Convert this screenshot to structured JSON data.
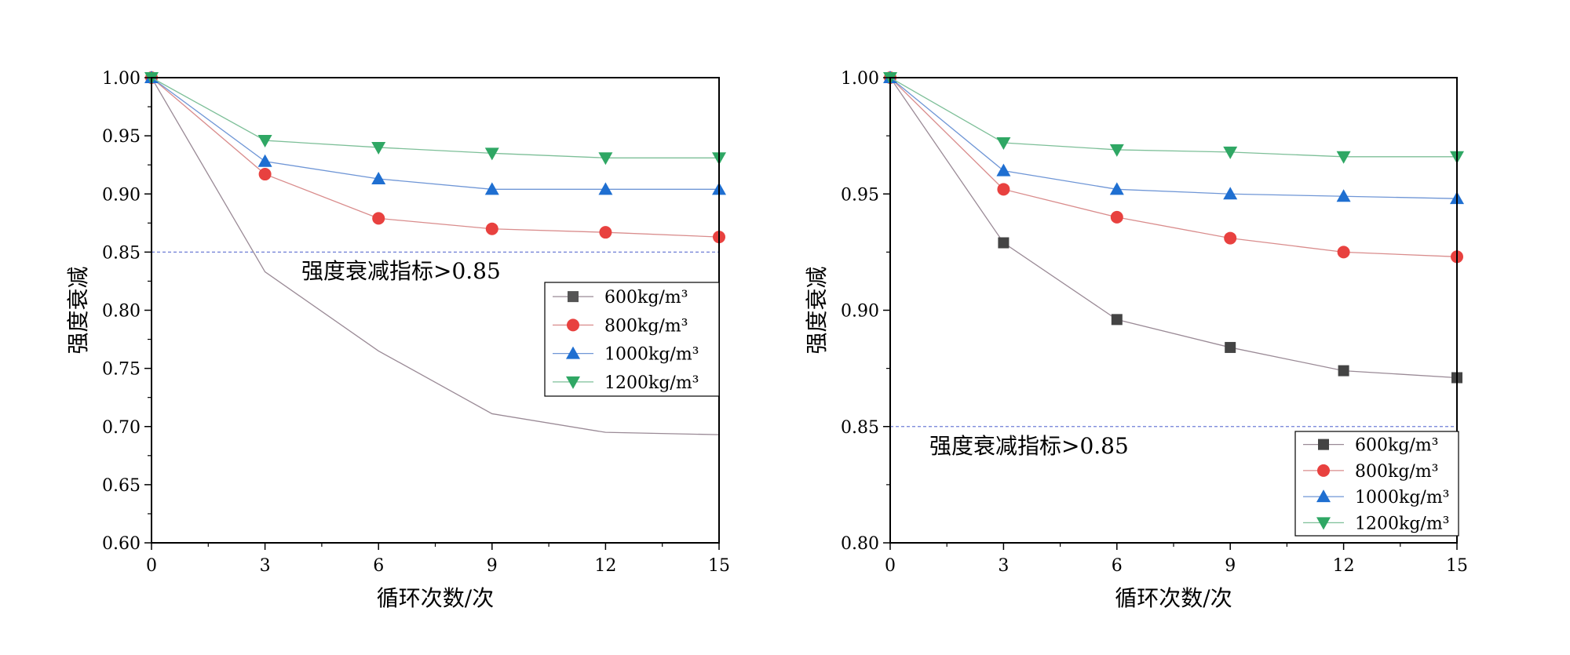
{
  "chart_data": [
    {
      "type": "line",
      "title": "",
      "xlabel": "循环次数/次",
      "ylabel": "强度衰减",
      "x": [
        0,
        3,
        6,
        9,
        12,
        15
      ],
      "xticks": [
        "0",
        "3",
        "6",
        "9",
        "12",
        "15"
      ],
      "xlim": [
        0,
        15
      ],
      "ylim": [
        0.6,
        1.0
      ],
      "yticks": [
        "0.60",
        "0.65",
        "0.70",
        "0.75",
        "0.80",
        "0.85",
        "0.90",
        "0.95",
        "1.00"
      ],
      "threshold": {
        "value": 0.85,
        "label": "强度衰减指标>0.85"
      },
      "legend_position": "center-right",
      "series": [
        {
          "name": "600kg/m³",
          "marker": "square",
          "color": "#555555",
          "line_color": "#9a8a96",
          "show_markers": false,
          "values": [
            1.0,
            0.833,
            0.765,
            0.711,
            0.695,
            0.693
          ]
        },
        {
          "name": "800kg/m³",
          "marker": "circle",
          "color": "#e8413f",
          "line_color": "#d98c8c",
          "show_markers": true,
          "values": [
            1.0,
            0.917,
            0.879,
            0.87,
            0.867,
            0.863
          ]
        },
        {
          "name": "1000kg/m³",
          "marker": "triangle-up",
          "color": "#1f6fd1",
          "line_color": "#6f96d6",
          "show_markers": true,
          "values": [
            1.0,
            0.928,
            0.913,
            0.904,
            0.904,
            0.904
          ]
        },
        {
          "name": "1200kg/m³",
          "marker": "triangle-down",
          "color": "#2fa764",
          "line_color": "#7dbf98",
          "show_markers": true,
          "values": [
            1.0,
            0.946,
            0.94,
            0.935,
            0.931,
            0.931
          ]
        }
      ]
    },
    {
      "type": "line",
      "title": "",
      "xlabel": "循环次数/次",
      "ylabel": "强度衰减",
      "x": [
        0,
        3,
        6,
        9,
        12,
        15
      ],
      "xticks": [
        "0",
        "3",
        "6",
        "9",
        "12",
        "15"
      ],
      "xlim": [
        0,
        15
      ],
      "ylim": [
        0.8,
        1.0
      ],
      "yticks": [
        "0.80",
        "0.85",
        "0.90",
        "0.95",
        "1.00"
      ],
      "threshold": {
        "value": 0.85,
        "label": "强度衰减指标>0.85"
      },
      "legend_position": "bottom-right",
      "series": [
        {
          "name": "600kg/m³",
          "marker": "square",
          "color": "#444444",
          "line_color": "#9a8a96",
          "show_markers": true,
          "values": [
            1.0,
            0.929,
            0.896,
            0.884,
            0.874,
            0.871
          ]
        },
        {
          "name": "800kg/m³",
          "marker": "circle",
          "color": "#e8413f",
          "line_color": "#d98c8c",
          "show_markers": true,
          "values": [
            1.0,
            0.952,
            0.94,
            0.931,
            0.925,
            0.923
          ]
        },
        {
          "name": "1000kg/m³",
          "marker": "triangle-up",
          "color": "#1f6fd1",
          "line_color": "#6f96d6",
          "show_markers": true,
          "values": [
            1.0,
            0.96,
            0.952,
            0.95,
            0.949,
            0.948
          ]
        },
        {
          "name": "1200kg/m³",
          "marker": "triangle-down",
          "color": "#2fa764",
          "line_color": "#7dbf98",
          "show_markers": true,
          "values": [
            1.0,
            0.972,
            0.969,
            0.968,
            0.966,
            0.966
          ]
        }
      ]
    }
  ]
}
